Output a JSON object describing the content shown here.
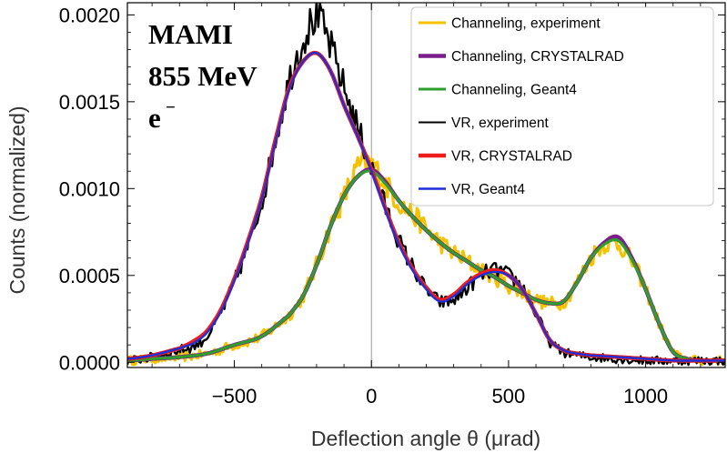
{
  "chart_data": {
    "type": "line",
    "xlabel": "Deflection angle θ (μrad)",
    "ylabel": "Counts (normalized)",
    "xlim": [
      -890,
      1290
    ],
    "ylim": [
      -3e-05,
      0.00207
    ],
    "x_ticks": [
      {
        "value": -500,
        "label": "−500"
      },
      {
        "value": 0,
        "label": "0"
      },
      {
        "value": 500,
        "label": "500"
      },
      {
        "value": 1000,
        "label": "1000"
      }
    ],
    "y_ticks": [
      {
        "value": 0.0,
        "label": "0.0000"
      },
      {
        "value": 0.0005,
        "label": "0.0005"
      },
      {
        "value": 0.001,
        "label": "0.0010"
      },
      {
        "value": 0.0015,
        "label": "0.0015"
      },
      {
        "value": 0.002,
        "label": "0.0020"
      }
    ],
    "annotations": {
      "line1": "MAMI",
      "line2": "855 MeV",
      "line3": "e",
      "line3_sup": "−"
    },
    "legend_position": "top-right",
    "series": [
      {
        "name": "Channeling, experiment",
        "color": "#f5c200",
        "noisy": true,
        "x": [
          -890,
          -800,
          -700,
          -600,
          -500,
          -400,
          -300,
          -250,
          -200,
          -150,
          -100,
          -50,
          0,
          50,
          100,
          150,
          200,
          250,
          300,
          350,
          400,
          450,
          500,
          550,
          600,
          650,
          700,
          750,
          800,
          850,
          900,
          950,
          1000,
          1050,
          1100,
          1150,
          1200,
          1290
        ],
        "y": [
          1e-05,
          2e-05,
          3e-05,
          5e-05,
          0.0001,
          0.00015,
          0.00027,
          0.00038,
          0.00056,
          0.00078,
          0.00095,
          0.00112,
          0.00114,
          0.00103,
          0.00092,
          0.00085,
          0.00077,
          0.00069,
          0.00063,
          0.00058,
          0.00053,
          0.00049,
          0.00044,
          0.0004,
          0.00036,
          0.00034,
          0.00035,
          0.00046,
          0.0006,
          0.00068,
          0.00068,
          0.00058,
          0.00042,
          0.00022,
          6e-05,
          2e-05,
          1e-05,
          1e-05
        ]
      },
      {
        "name": "Channeling, CRYSTALRAD",
        "color": "#7a1e8c",
        "noisy": false,
        "x": [
          -890,
          -800,
          -700,
          -600,
          -500,
          -400,
          -300,
          -250,
          -200,
          -150,
          -100,
          -50,
          0,
          50,
          100,
          150,
          200,
          250,
          300,
          350,
          400,
          450,
          500,
          550,
          600,
          650,
          700,
          750,
          800,
          850,
          900,
          950,
          1000,
          1050,
          1100,
          1150,
          1200,
          1290
        ],
        "y": [
          1e-05,
          2e-05,
          3e-05,
          5e-05,
          0.0001,
          0.00015,
          0.00027,
          0.00038,
          0.00056,
          0.00078,
          0.00096,
          0.00107,
          0.00111,
          0.00104,
          0.00093,
          0.00084,
          0.00076,
          0.00069,
          0.00063,
          0.00058,
          0.00053,
          0.00049,
          0.00044,
          0.0004,
          0.00036,
          0.00034,
          0.00035,
          0.00046,
          0.0006,
          0.00069,
          0.00072,
          0.0006,
          0.00042,
          0.00022,
          6e-05,
          2e-05,
          1e-05,
          1e-05
        ]
      },
      {
        "name": "Channeling, Geant4",
        "color": "#2f9e2f",
        "noisy": false,
        "x": [
          -890,
          -800,
          -700,
          -600,
          -500,
          -400,
          -300,
          -250,
          -200,
          -150,
          -100,
          -50,
          0,
          50,
          100,
          150,
          200,
          250,
          300,
          350,
          400,
          450,
          500,
          550,
          600,
          650,
          700,
          750,
          800,
          850,
          900,
          950,
          1000,
          1050,
          1100,
          1150,
          1200,
          1290
        ],
        "y": [
          1e-05,
          2e-05,
          3e-05,
          5e-05,
          0.0001,
          0.00015,
          0.00027,
          0.00038,
          0.00056,
          0.00078,
          0.00096,
          0.00107,
          0.0011,
          0.00103,
          0.00093,
          0.00084,
          0.00076,
          0.00069,
          0.00063,
          0.00058,
          0.00053,
          0.00049,
          0.00044,
          0.0004,
          0.00036,
          0.00034,
          0.00035,
          0.00046,
          0.0006,
          0.00068,
          0.0007,
          0.00059,
          0.00042,
          0.00022,
          6e-05,
          2e-05,
          1e-05,
          1e-05
        ]
      },
      {
        "name": "VR, experiment",
        "color": "#000000",
        "noisy": true,
        "x": [
          -890,
          -800,
          -700,
          -650,
          -600,
          -550,
          -500,
          -450,
          -400,
          -350,
          -300,
          -250,
          -200,
          -150,
          -100,
          -50,
          0,
          50,
          100,
          150,
          200,
          250,
          300,
          350,
          400,
          450,
          500,
          550,
          600,
          650,
          700,
          750,
          800,
          900,
          1000,
          1100,
          1290
        ],
        "y": [
          1e-05,
          3e-05,
          7e-05,
          9e-05,
          0.00015,
          0.00028,
          0.00046,
          0.00067,
          0.00093,
          0.00128,
          0.00162,
          0.00185,
          0.00198,
          0.00182,
          0.00158,
          0.00135,
          0.00112,
          0.0009,
          0.0007,
          0.00055,
          0.00042,
          0.00035,
          0.00036,
          0.00043,
          0.0005,
          0.00053,
          0.0005,
          0.00043,
          0.00028,
          0.00012,
          6e-05,
          4e-05,
          3e-05,
          2e-05,
          1e-05,
          1e-05,
          1e-05
        ]
      },
      {
        "name": "VR, CRYSTALRAD",
        "color": "#ee1c1c",
        "noisy": false,
        "x": [
          -890,
          -800,
          -700,
          -650,
          -600,
          -550,
          -500,
          -450,
          -400,
          -350,
          -300,
          -250,
          -200,
          -150,
          -100,
          -50,
          0,
          50,
          100,
          150,
          200,
          250,
          300,
          350,
          400,
          450,
          500,
          550,
          600,
          650,
          700,
          750,
          800,
          900,
          1000,
          1100,
          1290
        ],
        "y": [
          2e-05,
          4e-05,
          8e-05,
          0.00012,
          0.00018,
          0.0003,
          0.00048,
          0.0007,
          0.00095,
          0.00128,
          0.00158,
          0.00173,
          0.00178,
          0.00168,
          0.00148,
          0.0013,
          0.00111,
          0.00089,
          0.00069,
          0.00054,
          0.00043,
          0.00036,
          0.00039,
          0.00046,
          0.00051,
          0.00053,
          0.0005,
          0.00042,
          0.00028,
          0.00013,
          7e-05,
          5e-05,
          4e-05,
          3e-05,
          2e-05,
          1e-05,
          1e-05
        ]
      },
      {
        "name": "VR, Geant4",
        "color": "#1c2fd8",
        "noisy": false,
        "x": [
          -890,
          -800,
          -700,
          -650,
          -600,
          -550,
          -500,
          -450,
          -400,
          -350,
          -300,
          -250,
          -200,
          -150,
          -100,
          -50,
          0,
          50,
          100,
          150,
          200,
          250,
          300,
          350,
          400,
          450,
          500,
          550,
          600,
          650,
          700,
          750,
          800,
          900,
          1000,
          1100,
          1290
        ],
        "y": [
          2e-05,
          4e-05,
          8e-05,
          0.00011,
          0.00017,
          0.00029,
          0.00047,
          0.00069,
          0.00094,
          0.00127,
          0.00157,
          0.00173,
          0.00178,
          0.00168,
          0.00148,
          0.0013,
          0.0011,
          0.00088,
          0.00068,
          0.00053,
          0.00042,
          0.00035,
          0.00038,
          0.00045,
          0.0005,
          0.00052,
          0.0005,
          0.00042,
          0.00028,
          0.00013,
          7e-05,
          5e-05,
          4e-05,
          3e-05,
          2e-05,
          1e-05,
          1e-05
        ]
      }
    ]
  }
}
